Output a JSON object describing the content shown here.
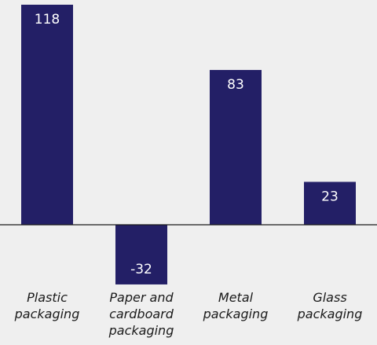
{
  "colors": {
    "bar": "#231f66",
    "axis": "#1a1a1a",
    "background": "#efefef",
    "value_text": "#ffffff"
  },
  "chart_data": {
    "type": "bar",
    "title": "",
    "xlabel": "",
    "ylabel": "",
    "categories": [
      [
        "Plastic",
        "packaging"
      ],
      [
        "Paper and",
        "cardboard",
        "packaging"
      ],
      [
        "Metal",
        "packaging"
      ],
      [
        "Glass",
        "packaging"
      ]
    ],
    "values": [
      118,
      -32,
      83,
      23
    ],
    "value_labels": [
      "118",
      "-32",
      "83",
      "23"
    ],
    "ylim": [
      -32,
      118
    ],
    "grid": false,
    "legend": "none"
  }
}
